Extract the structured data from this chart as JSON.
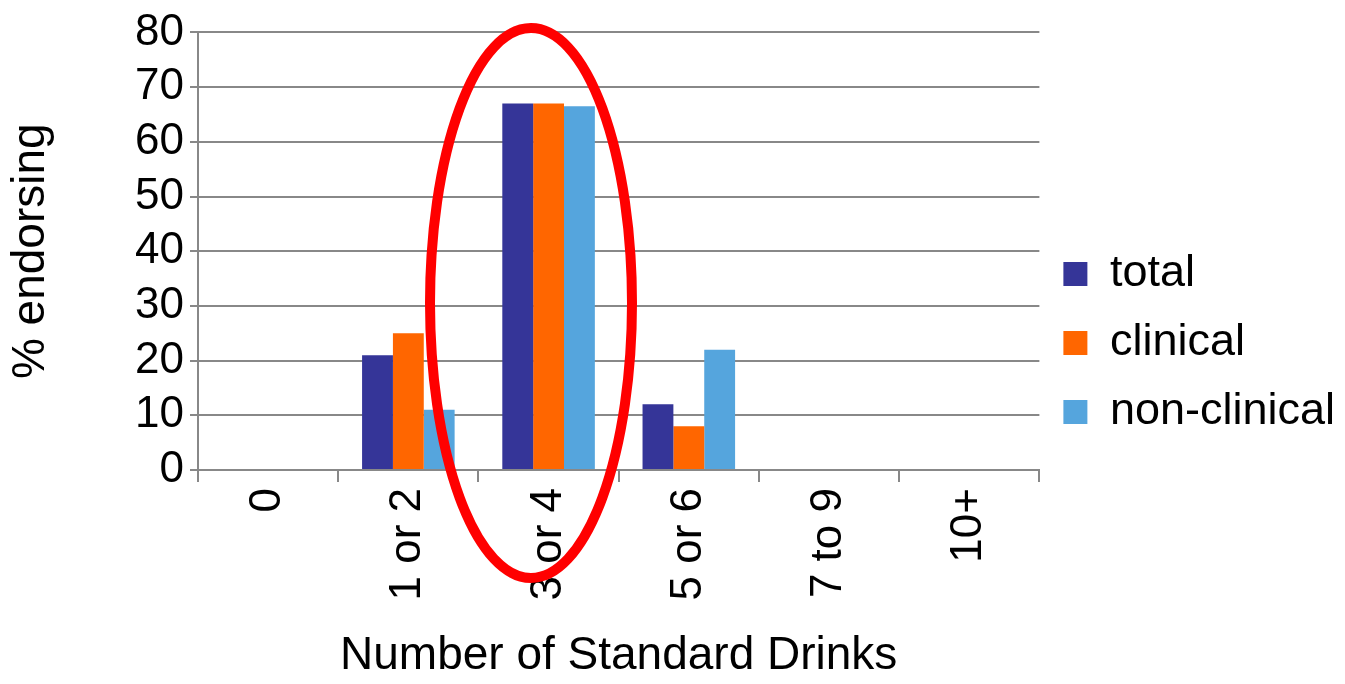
{
  "chart_data": {
    "type": "bar",
    "categories": [
      "0",
      "1 or 2",
      "3 or 4",
      "5 or 6",
      "7 to 9",
      "10+"
    ],
    "series": [
      {
        "name": "total",
        "color": "#353598",
        "values": [
          0,
          21,
          67,
          12,
          0,
          0
        ]
      },
      {
        "name": "clinical",
        "color": "#ff6600",
        "values": [
          0,
          25,
          67,
          8,
          0,
          0
        ]
      },
      {
        "name": "non-clinical",
        "color": "#55a5dd",
        "values": [
          0,
          11,
          66.5,
          22,
          0,
          0
        ]
      }
    ],
    "xlabel": "Number of Standard Drinks",
    "ylabel": "% endorsing",
    "ylim": [
      0,
      80
    ],
    "yticks": [
      0,
      10,
      20,
      30,
      40,
      50,
      60,
      70,
      80
    ],
    "grid": "y",
    "legend": "right"
  }
}
